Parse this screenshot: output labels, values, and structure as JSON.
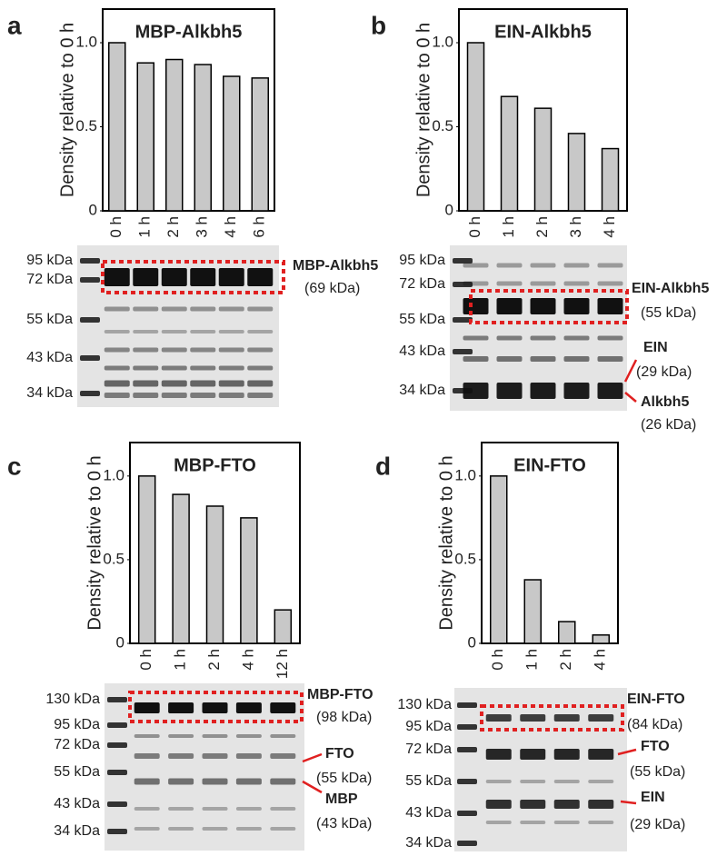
{
  "chart_data": [
    {
      "type": "bar",
      "panel": "a",
      "title": "MBP-Alkbh5",
      "y_label": "Density relative to 0 h",
      "categories": [
        "0 h",
        "1 h",
        "2 h",
        "3 h",
        "4 h",
        "6 h"
      ],
      "values": [
        1.0,
        0.88,
        0.9,
        0.87,
        0.8,
        0.79
      ],
      "color": "#c8c8c8",
      "ylim": [
        0,
        1.2
      ],
      "yticks": [
        0,
        0.5,
        {
          "value": 1,
          "label": "1.0"
        }
      ]
    },
    {
      "type": "bar",
      "panel": "b",
      "title": "EIN-Alkbh5",
      "y_label": "Density relative to 0 h",
      "categories": [
        "0 h",
        "1 h",
        "2 h",
        "3 h",
        "4 h"
      ],
      "values": [
        1.0,
        0.68,
        0.61,
        0.46,
        0.37
      ],
      "color": "#c8c8c8",
      "ylim": [
        0,
        1.2
      ],
      "yticks": [
        0,
        0.5,
        {
          "value": 1,
          "label": "1.0"
        }
      ]
    },
    {
      "type": "bar",
      "panel": "c",
      "title": "MBP-FTO",
      "y_label": "Density relative to 0 h",
      "categories": [
        "0 h",
        "1 h",
        "2 h",
        "4 h",
        "12 h"
      ],
      "values": [
        1.0,
        0.89,
        0.82,
        0.75,
        0.2
      ],
      "color": "#c8c8c8",
      "ylim": [
        0,
        1.2
      ],
      "yticks": [
        0,
        0.5,
        {
          "value": 1,
          "label": "1.0"
        }
      ]
    },
    {
      "type": "bar",
      "panel": "d",
      "title": "EIN-FTO",
      "y_label": "Density relative to 0 h",
      "categories": [
        "0 h",
        "1 h",
        "2 h",
        "4 h"
      ],
      "values": [
        1.0,
        0.38,
        0.13,
        0.05
      ],
      "color": "#c8c8c8",
      "ylim": [
        0,
        1.2
      ],
      "yticks": [
        0,
        0.5,
        {
          "value": 1,
          "label": "1.0"
        }
      ]
    }
  ],
  "gels": [
    {
      "markers": [
        "95 kDa",
        "72 kDa",
        "55 kDa",
        "43 kDa",
        "34 kDa"
      ],
      "labels": [
        "MBP-Alkbh5",
        "(69 kDa)"
      ]
    },
    {
      "markers": [
        "95 kDa",
        "72 kDa",
        "55 kDa",
        "43 kDa",
        "34 kDa"
      ],
      "labels": [
        "EIN-Alkbh5",
        "(55 kDa)",
        "EIN",
        "(29 kDa)",
        "Alkbh5",
        "(26 kDa)"
      ]
    },
    {
      "markers": [
        "130 kDa",
        "95 kDa",
        "72 kDa",
        "55 kDa",
        "43 kDa",
        "34 kDa"
      ],
      "labels": [
        "MBP-FTO",
        "(98 kDa)",
        "FTO",
        "(55 kDa)",
        "MBP",
        "(43 kDa)"
      ]
    },
    {
      "markers": [
        "130 kDa",
        "95 kDa",
        "72 kDa",
        "55 kDa",
        "43 kDa",
        "34 kDa"
      ],
      "labels": [
        "EIN-FTO",
        "(84 kDa)",
        "FTO",
        "(55 kDa)",
        "EIN",
        "(29 kDa)"
      ]
    }
  ]
}
